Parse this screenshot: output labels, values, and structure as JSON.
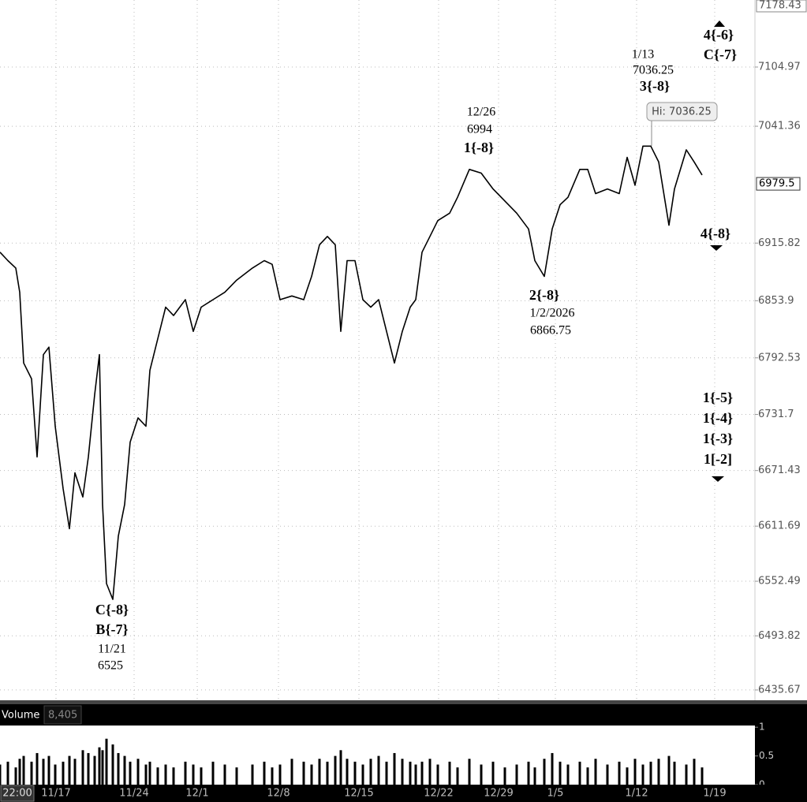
{
  "chart_data": {
    "type": "line",
    "series": [
      {
        "color": "#000000",
        "x": [
          0,
          0.5,
          1,
          1.25,
          1.5,
          2,
          2.35,
          2.75,
          3.1,
          3.5,
          4,
          4.4,
          4.75,
          5.25,
          5.6,
          6,
          6.3,
          6.5,
          6.75,
          7.15,
          7.5,
          7.9,
          8.25,
          8.75,
          9.25,
          9.5,
          10,
          10.5,
          11,
          11.75,
          12.25,
          12.75,
          13.5,
          14.25,
          15,
          16,
          16.75,
          17.25,
          17.75,
          18.5,
          19.25,
          19.75,
          20.25,
          20.75,
          21.25,
          21.6,
          22,
          22.5,
          23,
          23.5,
          24,
          24.5,
          25,
          25.5,
          26,
          26.35,
          26.75,
          27.25,
          27.75,
          28.5,
          29,
          29.75,
          30.5,
          31.25,
          32,
          32.75,
          33.5,
          33.9,
          34.5,
          35,
          35.5,
          36,
          36.75,
          37.25,
          37.75,
          38.5,
          39.25,
          39.75,
          40.25,
          40.75,
          41.25,
          41.75,
          42.4,
          42.75,
          43.5,
          44,
          44.5
        ],
        "values": [
          6906,
          6897,
          6889,
          6863,
          6787,
          6770,
          6686,
          6796,
          6804,
          6719,
          6652,
          6609,
          6669,
          6643,
          6686,
          6753,
          6796,
          6635,
          6550,
          6533,
          6601,
          6635,
          6702,
          6728,
          6719,
          6779,
          6813,
          6847,
          6838,
          6855,
          6821,
          6847,
          6855,
          6863,
          6876,
          6889,
          6897,
          6893,
          6855,
          6859,
          6855,
          6880,
          6914,
          6923,
          6914,
          6821,
          6897,
          6897,
          6855,
          6847,
          6855,
          6821,
          6787,
          6821,
          6847,
          6855,
          6906,
          6923,
          6940,
          6948,
          6965,
          6995,
          6991,
          6974,
          6961,
          6948,
          6931,
          6897,
          6880,
          6931,
          6957,
          6965,
          6995,
          6995,
          6969,
          6974,
          6969,
          7008,
          6978,
          7020,
          7020,
          7003,
          6935,
          6974,
          7016,
          7003,
          6989
        ]
      }
    ],
    "ylim": [
      6424.6,
      7177
    ],
    "yticks": [
      6435.67,
      6493.82,
      6552.49,
      6611.69,
      6671.43,
      6731.7,
      6792.53,
      6853.9,
      6915.82,
      7041.36,
      7104.97
    ],
    "top_price": 7178.43,
    "current_price": 6979.5,
    "xlim": [
      0,
      47.85
    ],
    "xticks": [
      {
        "value": 3.55,
        "label": "11/17"
      },
      {
        "value": 8.5,
        "label": "11/24"
      },
      {
        "value": 12.5,
        "label": "12/1"
      },
      {
        "value": 17.65,
        "label": "12/8"
      },
      {
        "value": 22.75,
        "label": "12/15"
      },
      {
        "value": 27.8,
        "label": "12/22"
      },
      {
        "value": 31.6,
        "label": "12/29"
      },
      {
        "value": 35.2,
        "label": "1/5"
      },
      {
        "value": 40.35,
        "label": "1/12"
      },
      {
        "value": 45.3,
        "label": "1/19"
      }
    ],
    "time_label": "22:00",
    "grid": true,
    "hi_label": "Hi: 7036.25",
    "annotations": [
      [
        "12/26",
        "6994",
        "1{-8}"
      ],
      [
        "1/13",
        "7036.25",
        "3{-8}"
      ],
      [
        "4{-6}",
        "C{-7}"
      ],
      [
        "4{-8}"
      ],
      [
        "2{-8}",
        "1/2/2026",
        "6866.75"
      ],
      [
        "1{-5}",
        "1{-4}",
        "1{-3}",
        "1[-2]"
      ],
      [
        "C{-8}",
        "B{-7}",
        "11/21",
        "6525"
      ]
    ],
    "volume": {
      "title": "Volume",
      "last": "8,405",
      "color": "#000000",
      "ylim": [
        0,
        1.03
      ],
      "yticks": [
        0,
        0.5,
        1
      ],
      "values": [
        0.35,
        0.4,
        0.3,
        0.45,
        0.5,
        0.4,
        0.55,
        0.45,
        0.5,
        0.35,
        0.4,
        0.5,
        0.45,
        0.6,
        0.55,
        0.5,
        0.65,
        0.6,
        0.8,
        0.7,
        0.55,
        0.5,
        0.4,
        0.45,
        0.35,
        0.4,
        0.3,
        0.35,
        0.3,
        0.4,
        0.35,
        0.3,
        0.4,
        0.35,
        0.3,
        0.35,
        0.4,
        0.3,
        0.35,
        0.45,
        0.4,
        0.35,
        0.45,
        0.4,
        0.5,
        0.6,
        0.45,
        0.4,
        0.35,
        0.45,
        0.5,
        0.4,
        0.55,
        0.45,
        0.4,
        0.35,
        0.4,
        0.45,
        0.35,
        0.4,
        0.3,
        0.45,
        0.35,
        0.4,
        0.3,
        0.35,
        0.4,
        0.3,
        0.45,
        0.55,
        0.4,
        0.35,
        0.4,
        0.3,
        0.45,
        0.35,
        0.4,
        0.3,
        0.45,
        0.35,
        0.4,
        0.45,
        0.5,
        0.4,
        0.35,
        0.45,
        0.3
      ]
    }
  }
}
